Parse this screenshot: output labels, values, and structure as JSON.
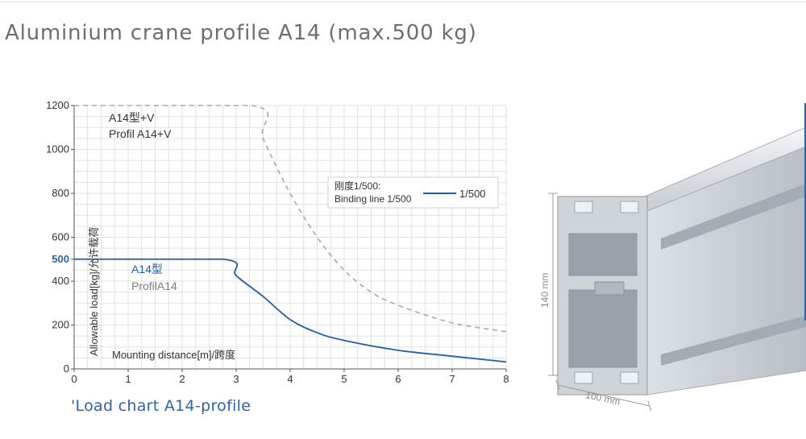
{
  "page": {
    "title": "Aluminium crane profile A14 (max.500 kg)",
    "chart_caption": "'Load chart A14-profile"
  },
  "colors": {
    "title": "#6e6e6e",
    "caption": "#2f63a6",
    "series_a14": "#1f5ea8",
    "series_a14v": "#a8a8a8",
    "grid": "#e1e1e1",
    "highlight_tick": "#2f63a6",
    "profile_body": "#c9ced4",
    "profile_dim": "#9a9a9a"
  },
  "chart_data": {
    "type": "line",
    "title": "",
    "xlabel": "Mounting distance[m]/跨度",
    "ylabel": "Allowable load[kg]/允许载荷",
    "xlim": [
      0,
      8
    ],
    "ylim": [
      0,
      1200
    ],
    "x_ticks": [
      "0",
      "1",
      "2",
      "3",
      "4",
      "5",
      "6",
      "7",
      "8"
    ],
    "y_ticks": [
      "0",
      "200",
      "400",
      "500",
      "600",
      "800",
      "1000",
      "1200"
    ],
    "highlight_tick": "500",
    "grid": true,
    "series": [
      {
        "name": "A14型 / ProfilA14",
        "style": "solid",
        "points": [
          [
            0,
            500
          ],
          [
            2.75,
            500
          ],
          [
            3.0,
            425
          ],
          [
            3.5,
            330
          ],
          [
            4.0,
            225
          ],
          [
            4.5,
            165
          ],
          [
            5.0,
            130
          ],
          [
            6.0,
            85
          ],
          [
            7.0,
            58
          ],
          [
            8.0,
            32
          ]
        ]
      },
      {
        "name": "A14型+V / Profil A14+V",
        "style": "dashed",
        "points": [
          [
            0,
            1200
          ],
          [
            3.3,
            1200
          ],
          [
            3.5,
            1050
          ],
          [
            4.0,
            800
          ],
          [
            4.5,
            600
          ],
          [
            5.0,
            450
          ],
          [
            5.5,
            350
          ],
          [
            6.0,
            290
          ],
          [
            7.0,
            210
          ],
          [
            8.0,
            170
          ]
        ]
      }
    ],
    "annotations": [
      {
        "id": "a14v_label_1",
        "text": "A14型+V"
      },
      {
        "id": "a14v_label_2",
        "text": "Profil A14+V"
      },
      {
        "id": "a14_label_1",
        "text": "A14型"
      },
      {
        "id": "a14_label_2",
        "text": "ProfilA14"
      }
    ],
    "legend": {
      "placement": "top-right",
      "line1": "刚度1/500:",
      "line2": "Binding line 1/500",
      "entry_label": "1/500"
    }
  },
  "profile_image": {
    "height_label": "140 mm",
    "width_label": "100 mm"
  }
}
